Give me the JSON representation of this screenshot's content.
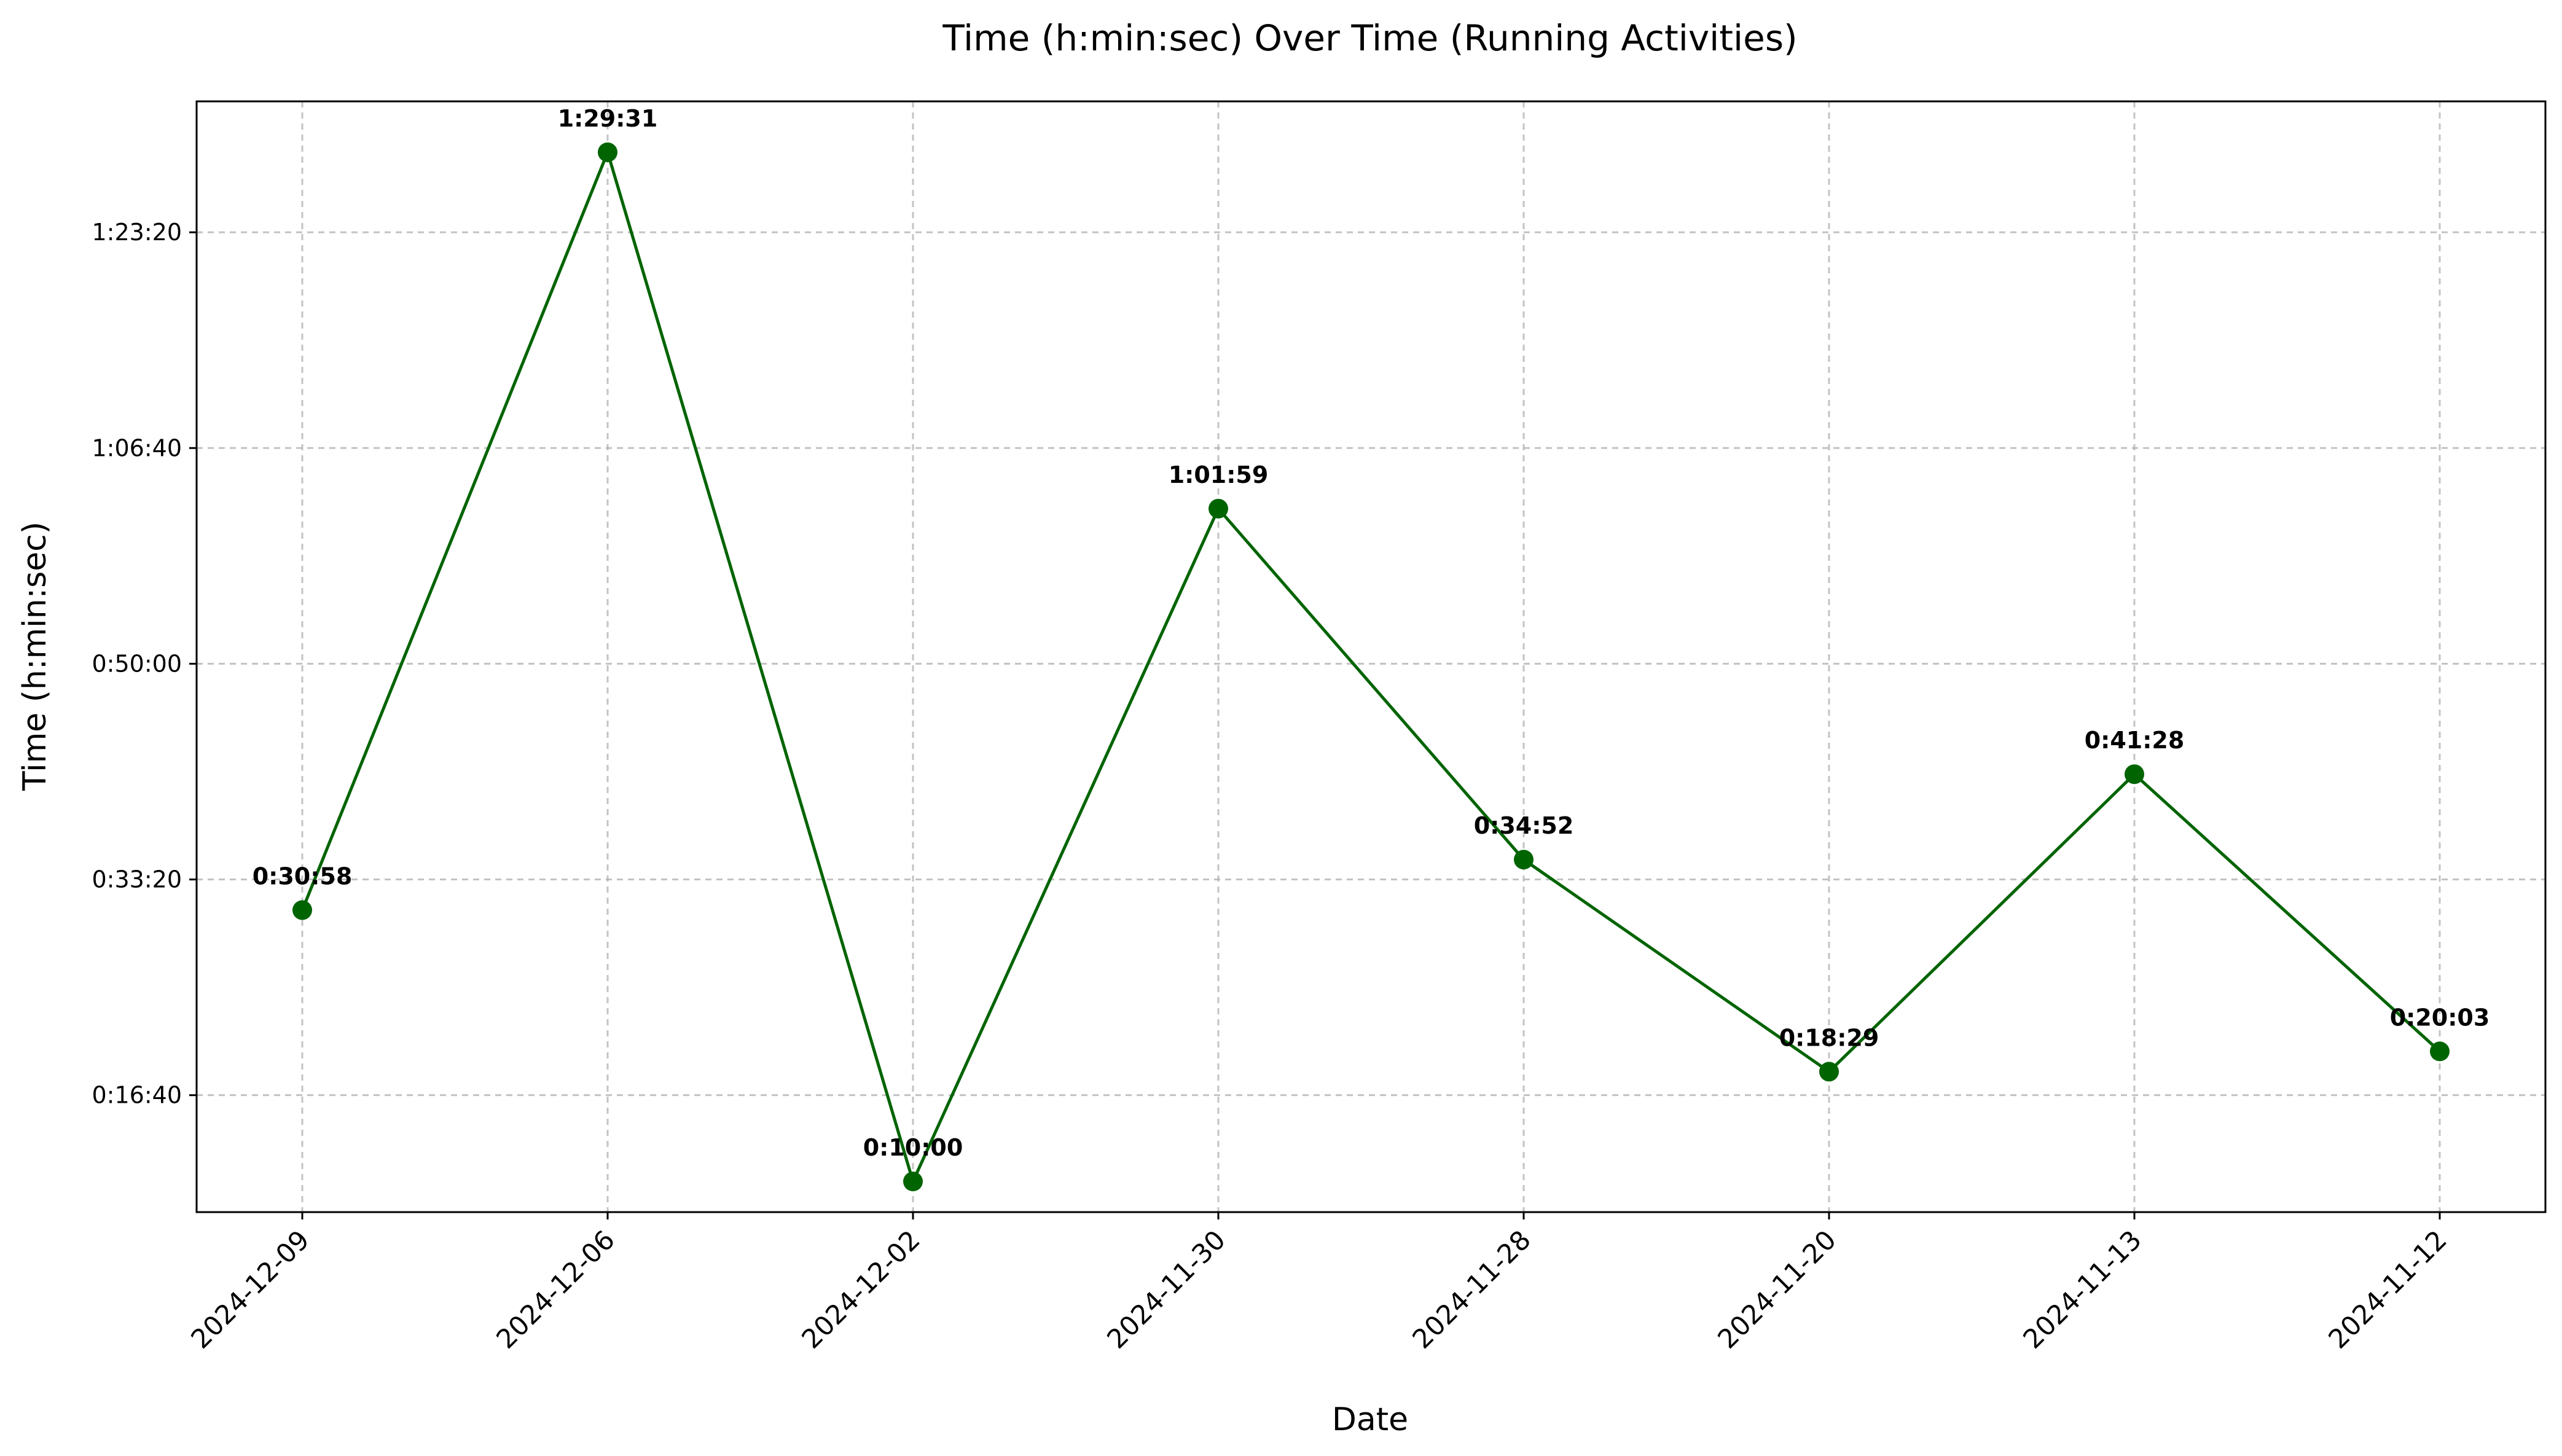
{
  "chart_data": {
    "type": "line",
    "title": "Time (h:min:sec) Over Time (Running Activities)",
    "xlabel": "Date",
    "ylabel": "Time (h:min:sec)",
    "categories": [
      "2024-12-09",
      "2024-12-06",
      "2024-12-02",
      "2024-11-30",
      "2024-11-28",
      "2024-11-20",
      "2024-11-13",
      "2024-11-12"
    ],
    "series": [
      {
        "values": [
          "0:30:58",
          "1:29:31",
          "0:10:00",
          "1:01:59",
          "0:34:52",
          "0:18:29",
          "0:41:28",
          "0:20:03"
        ],
        "data_labels": [
          "0:30:58",
          "1:29:31",
          "0:10:00",
          "1:01:59",
          "0:34:52",
          "0:18:29",
          "0:41:28",
          "0:20:03"
        ]
      }
    ],
    "ylim": [
      "0:07:38",
      "1:33:27"
    ],
    "yticks": [
      "0:16:40",
      "0:33:20",
      "0:50:00",
      "1:06:40",
      "1:23:20"
    ],
    "grid": true,
    "line_color": "#006400",
    "marker_color": "#006400"
  }
}
